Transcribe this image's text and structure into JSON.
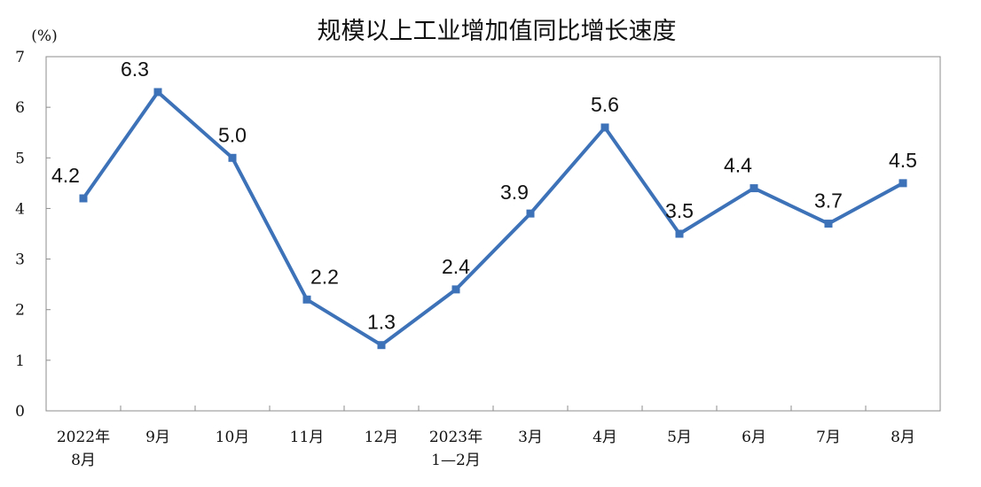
{
  "chart_data": {
    "type": "line",
    "title": "规模以上工业增加值同比增长速度",
    "unit": "(%)",
    "xlabel": "",
    "ylabel": "",
    "ylim": [
      0,
      7
    ],
    "yticks": [
      "0",
      "1",
      "2",
      "3",
      "4",
      "5",
      "6",
      "7"
    ],
    "grid": false,
    "legend": "none",
    "categories": [
      [
        "2022年",
        "8月"
      ],
      [
        "9月"
      ],
      [
        "10月"
      ],
      [
        "11月"
      ],
      [
        "12月"
      ],
      [
        "2023年",
        "1—2月"
      ],
      [
        "3月"
      ],
      [
        "4月"
      ],
      [
        "5月"
      ],
      [
        "6月"
      ],
      [
        "7月"
      ],
      [
        "8月"
      ]
    ],
    "series": [
      {
        "values": [
          4.2,
          6.3,
          5.0,
          2.2,
          1.3,
          2.4,
          3.9,
          5.6,
          3.5,
          4.4,
          3.7,
          4.5
        ],
        "labels": [
          "4.2",
          "6.3",
          "5.0",
          "2.2",
          "1.3",
          "2.4",
          "3.9",
          "5.6",
          "3.5",
          "4.4",
          "3.7",
          "4.5"
        ]
      }
    ],
    "colors": {
      "line": "#3d72b8",
      "frame": "#8c8c8c",
      "text": "#111111"
    }
  }
}
